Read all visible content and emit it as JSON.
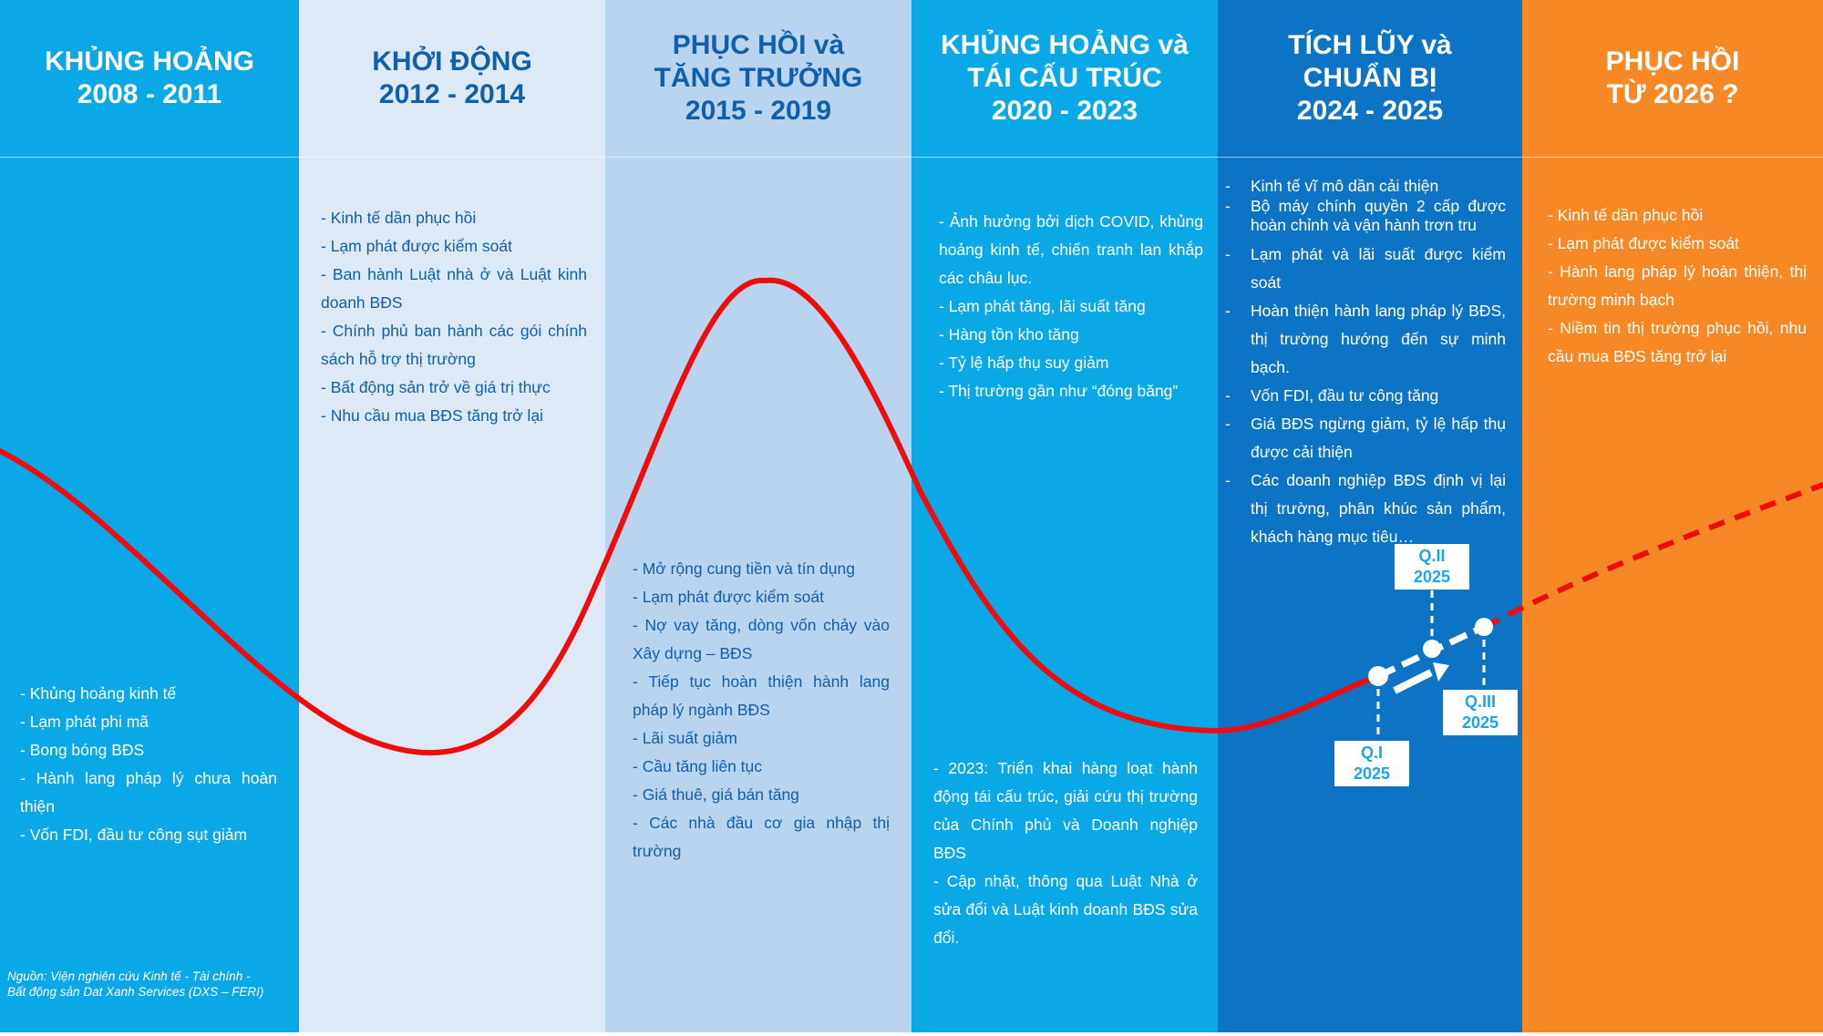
{
  "columns": [
    {
      "title_lines": [
        "KHỦNG HOẢNG",
        "2008 - 2011"
      ],
      "bullets": [
        "- Khủng hoảng kinh tế",
        "- Lạm phát phi mã",
        "- Bong bóng BĐS",
        "- Hành lang pháp lý chưa hoàn thiện",
        "- Vốn FDI, đầu tư công sụt giảm"
      ]
    },
    {
      "title_lines": [
        "KHỞI ĐỘNG",
        "2012 - 2014"
      ],
      "bullets": [
        "- Kinh tế dần phục hồi",
        "- Lạm phát được kiểm soát",
        "- Ban hành Luật nhà ở và Luật kinh doanh BĐS",
        "- Chính phủ ban hành các gói chính sách hỗ trợ thị trường",
        "- Bất động sản trở về giá trị thực",
        "- Nhu cầu mua BĐS tăng trở lại"
      ]
    },
    {
      "title_lines": [
        "PHỤC HỒI và",
        "TĂNG TRƯỞNG",
        "2015 - 2019"
      ],
      "bullets": [
        "- Mở rộng cung tiền và tín dụng",
        "- Lạm phát được kiểm soát",
        "- Nợ vay tăng, dòng vốn chảy vào Xây dựng – BĐS",
        "- Tiếp tục hoàn thiện hành lang pháp lý ngành BĐS",
        "- Lãi suất giảm",
        "- Cầu tăng liên tục",
        "- Giá thuê, giá bán tăng",
        "- Các nhà đầu cơ gia nhập thị trường"
      ]
    },
    {
      "title_lines": [
        "KHỦNG HOẢNG và",
        "TÁI CẤU TRÚC",
        "2020 - 2023"
      ],
      "bullets_top": [
        "- Ảnh hưởng bởi dịch COVID, khủng hoảng kinh tế, chiến tranh lan khắp các châu lục.",
        "- Lạm phát tăng, lãi suất tăng",
        "- Hàng tồn kho tăng",
        "- Tỷ lệ hấp thụ suy giảm",
        "- Thị trường gần như “đóng băng”"
      ],
      "bullets_bottom": [
        "- 2023: Triển khai hàng loạt hành động tái cấu trúc, giải cứu thị trường của Chính phủ và Doanh nghiệp BĐS",
        "- Cập nhật, thông qua Luật Nhà ở sửa đổi và Luật kinh doanh BĐS sửa đổi."
      ]
    },
    {
      "title_lines": [
        "TÍCH LŨY và",
        "CHUẨN BỊ",
        "2024 - 2025"
      ],
      "bullets": [
        "Kinh tế vĩ mô dần cải thiện",
        "Bộ máy chính quyền 2 cấp được hoàn chỉnh và vận hành trơn tru",
        "Lạm phát và lãi suất được kiểm soát",
        "Hoàn thiện hành lang pháp lý BĐS, thị trường hướng đến sự minh bạch.",
        "Vốn FDI, đầu tư công tăng",
        "Giá BĐS ngừng giảm, tỷ lệ hấp thụ được cải thiện",
        "Các doanh nghiệp BĐS định vị lại thị trường, phân khúc sản phẩm, khách hàng mục tiêu…"
      ]
    },
    {
      "title_lines": [
        "PHỤC HỒI",
        "TỪ 2026 ?"
      ],
      "bullets": [
        "- Kinh tế dần phục hồi",
        "- Lạm phát được kiểm soát",
        "- Hành lang pháp lý hoàn thiện, thị trường minh bạch",
        "- Niềm tin thị trường phục hồi, nhu cầu mua BĐS tăng trở lại"
      ]
    }
  ],
  "quarters": [
    {
      "q": "Q.I",
      "year": "2025"
    },
    {
      "q": "Q.II",
      "year": "2025"
    },
    {
      "q": "Q.III",
      "year": "2025"
    }
  ],
  "source": "Nguồn: Viện nghiên cứu Kinh tế - Tài chính - Bất động sản Dat Xanh Services (DXS – FERI)",
  "colors": {
    "col1": "#0aa8e7",
    "col2": "#dde9f6",
    "col3": "#b9d4ee",
    "col4": "#0aa8e7",
    "col5": "#0d73c4",
    "col6": "#f68926",
    "curve": "#ee0c0c",
    "title_dark": "#0f5fac"
  }
}
